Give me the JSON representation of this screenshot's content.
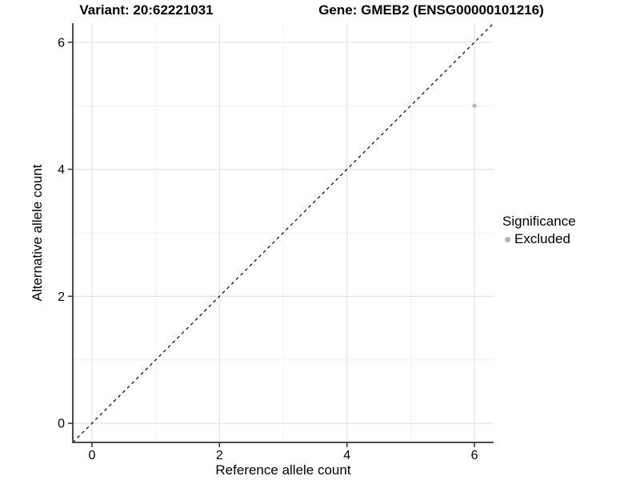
{
  "titles": {
    "variant": "Variant: 20:62221031",
    "gene": "Gene: GMEB2 (ENSG00000101216)"
  },
  "chart_data": {
    "type": "scatter",
    "xlabel": "Reference allele count",
    "ylabel": "Alternative allele count",
    "xlim": [
      -0.3,
      6.3
    ],
    "ylim": [
      -0.3,
      6.3
    ],
    "x_major_ticks": [
      0,
      2,
      4,
      6
    ],
    "y_major_ticks": [
      0,
      2,
      4,
      6
    ],
    "x_minor_ticks": [
      1,
      3,
      5
    ],
    "y_minor_ticks": [
      1,
      3,
      5
    ],
    "grid": true,
    "identity_line": {
      "style": "dashed",
      "from": -0.3,
      "to": 6.3
    },
    "series": [
      {
        "name": "Excluded",
        "color": "#b4b4b4",
        "points": [
          {
            "x": 6,
            "y": 5
          }
        ]
      }
    ]
  },
  "legend": {
    "title": "Significance",
    "position": "right",
    "items": [
      {
        "label": "Excluded",
        "color": "#b4b4b4"
      }
    ]
  },
  "colors": {
    "background": "#ffffff",
    "grid_major": "#e4e4e4",
    "grid_minor": "#f0f0f0",
    "axis_line": "#4d4d4d",
    "tick_mark": "#333333",
    "tick_text": "#000000",
    "identity_line": "#000000",
    "title_text": "#000000"
  }
}
